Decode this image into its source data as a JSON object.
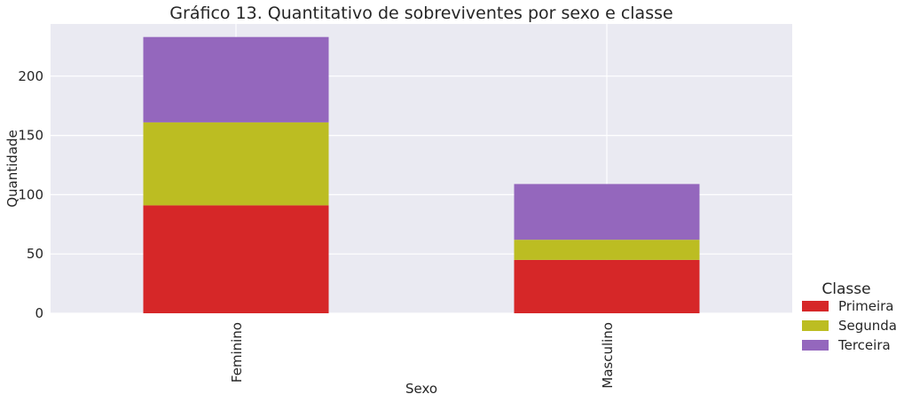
{
  "chart_data": {
    "type": "bar",
    "stacked": true,
    "title": "Gráfico 13. Quantitativo de sobreviventes por sexo e classe",
    "xlabel": "Sexo",
    "ylabel": "Quantidade",
    "categories": [
      "Feminino",
      "Masculino"
    ],
    "series": [
      {
        "name": "Primeira",
        "color": "#d62728",
        "values": [
          91,
          45
        ]
      },
      {
        "name": "Segunda",
        "color": "#bcbd22",
        "values": [
          70,
          17
        ]
      },
      {
        "name": "Terceira",
        "color": "#9467bd",
        "values": [
          72,
          47
        ]
      }
    ],
    "ylim": [
      0,
      244
    ],
    "yticks": [
      0,
      50,
      100,
      150,
      200
    ],
    "grid": true,
    "legend": {
      "title": "Classe",
      "placement": "right-bottom"
    }
  }
}
